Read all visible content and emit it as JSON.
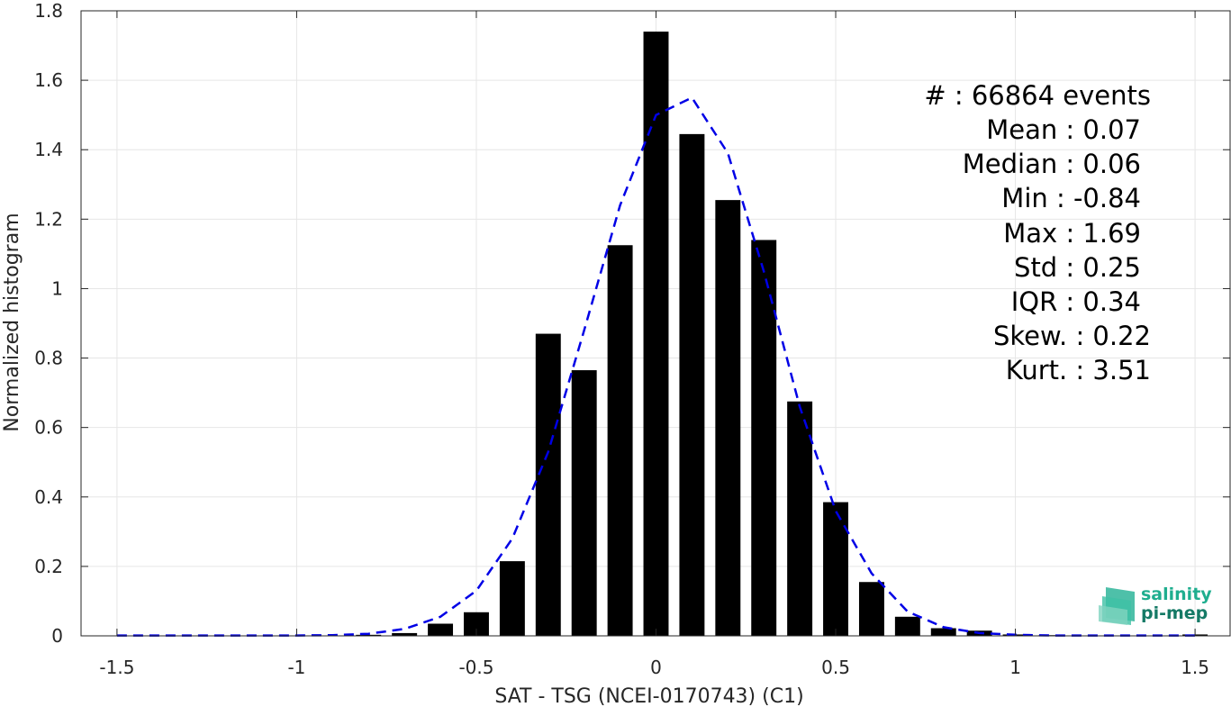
{
  "chart_data": {
    "type": "bar",
    "xlabel": "SAT - TSG (NCEI-0170743) (C1)",
    "ylabel": "Normalized histogram",
    "xlim": [
      -1.6,
      1.6
    ],
    "ylim": [
      0,
      1.8
    ],
    "grid": true,
    "x_ticks": [
      "-1.5",
      "-1",
      "-0.5",
      "0",
      "0.5",
      "1",
      "1.5"
    ],
    "x_tick_values": [
      -1.5,
      -1,
      -0.5,
      0,
      0.5,
      1,
      1.5
    ],
    "y_ticks": [
      "0",
      "0.2",
      "0.4",
      "0.6",
      "0.8",
      "1",
      "1.2",
      "1.4",
      "1.6",
      "1.8"
    ],
    "y_tick_values": [
      0,
      0.2,
      0.4,
      0.6,
      0.8,
      1,
      1.2,
      1.4,
      1.6,
      1.8
    ],
    "bar_color": "#000000",
    "bar_width": 0.07,
    "bars": {
      "x": [
        -1.5,
        -1.4,
        -1.3,
        -1.2,
        -1.1,
        -1.0,
        -0.9,
        -0.8,
        -0.7,
        -0.6,
        -0.5,
        -0.4,
        -0.3,
        -0.2,
        -0.1,
        0.0,
        0.1,
        0.2,
        0.3,
        0.4,
        0.5,
        0.6,
        0.7,
        0.8,
        0.9,
        1.0,
        1.1,
        1.2,
        1.3,
        1.4,
        1.5
      ],
      "values": [
        0,
        0,
        0,
        0,
        0,
        0,
        0,
        0.003,
        0.008,
        0.035,
        0.068,
        0.215,
        0.87,
        0.765,
        1.125,
        1.74,
        1.445,
        1.255,
        1.14,
        0.675,
        0.385,
        0.155,
        0.055,
        0.022,
        0.015,
        0.004,
        0.002,
        0.001,
        0.001,
        0.001,
        0.004
      ]
    },
    "fit_curve": {
      "color": "#0000e6",
      "style": "dashed",
      "x": [
        -1.5,
        -1.4,
        -1.3,
        -1.2,
        -1.1,
        -1.0,
        -0.9,
        -0.8,
        -0.7,
        -0.6,
        -0.5,
        -0.4,
        -0.3,
        -0.2,
        -0.1,
        0.0,
        0.1,
        0.2,
        0.3,
        0.4,
        0.5,
        0.6,
        0.7,
        0.8,
        0.9,
        1.0,
        1.1,
        1.2,
        1.3,
        1.4,
        1.5
      ],
      "values": [
        0.001,
        0.001,
        0.001,
        0.001,
        0.001,
        0.001,
        0.002,
        0.006,
        0.02,
        0.055,
        0.13,
        0.28,
        0.53,
        0.88,
        1.24,
        1.5,
        1.55,
        1.39,
        1.05,
        0.66,
        0.36,
        0.18,
        0.07,
        0.025,
        0.008,
        0.003,
        0.001,
        0.001,
        0.001,
        0.001,
        0.001
      ]
    }
  },
  "stats": [
    "#  : 66864 events",
    "Mean : 0.07",
    "Median : 0.06",
    "Min : -0.84",
    "Max : 1.69",
    "Std : 0.25",
    "IQR : 0.34",
    "Skew. : 0.22",
    "Kurt. : 3.51"
  ],
  "logo": {
    "line1": "salinity",
    "line2": "pi-mep"
  }
}
